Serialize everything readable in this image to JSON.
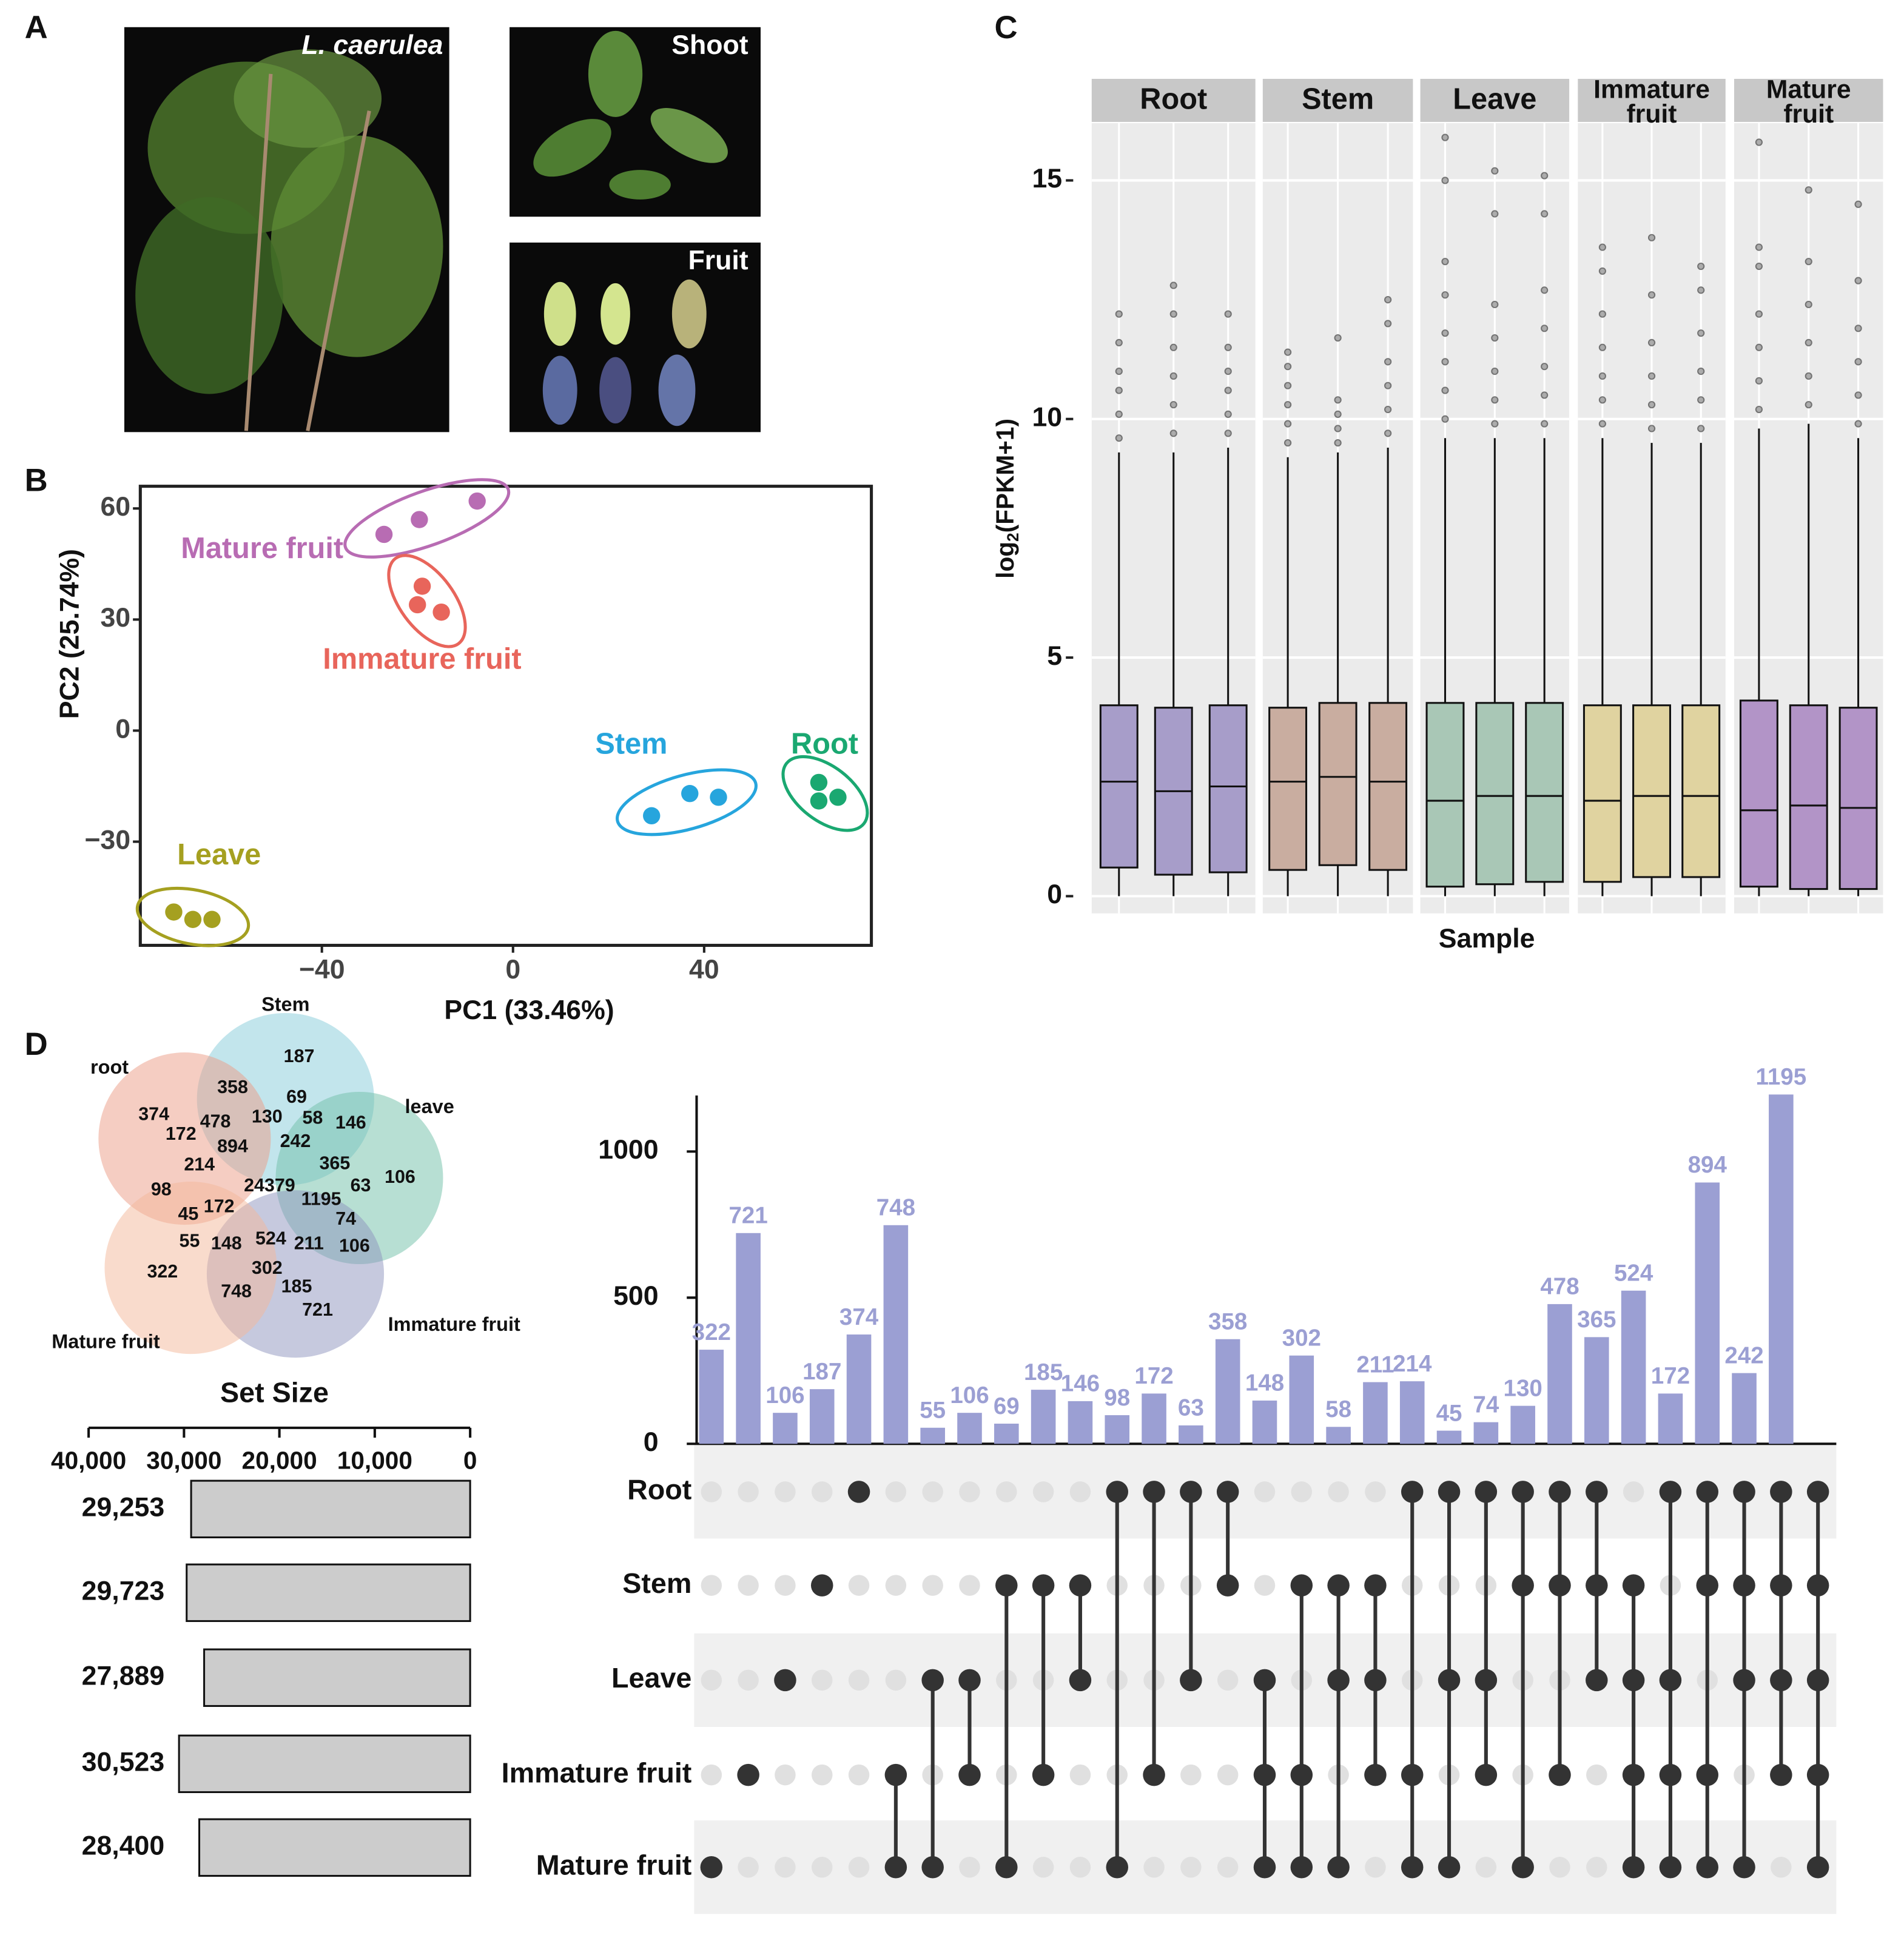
{
  "panel_labels": [
    "A",
    "B",
    "C",
    "D"
  ],
  "photos": {
    "plant": "L. caerulea",
    "shoot": "Shoot",
    "fruit": "Fruit"
  },
  "chart_data": [
    {
      "type": "scatter",
      "xlabel": "PC1 (33.46%)",
      "ylabel": "PC2 (25.74%)",
      "xlim": [
        -78,
        75
      ],
      "ylim": [
        -58,
        66
      ],
      "xticks": [
        {
          "value": -40,
          "label": "−40"
        },
        0,
        40
      ],
      "yticks": [
        {
          "value": -30,
          "label": "−30"
        },
        0,
        30,
        60
      ],
      "series": [
        {
          "name": "Mature fruit",
          "color": "#b86cb3",
          "x": [
            -27,
            -19.6,
            -7.5
          ],
          "y": [
            53,
            57,
            62
          ]
        },
        {
          "name": "Immature fruit",
          "color": "#e8655b",
          "x": [
            -19,
            -20,
            -15
          ],
          "y": [
            39,
            34,
            32
          ]
        },
        {
          "name": "Stem",
          "color": "#26a5dd",
          "x": [
            29,
            37,
            43
          ],
          "y": [
            -23,
            -17,
            -18
          ]
        },
        {
          "name": "Root",
          "color": "#1aa871",
          "x": [
            64,
            64,
            68
          ],
          "y": [
            -14,
            -19,
            -18
          ]
        },
        {
          "name": "Leave",
          "color": "#a5a020",
          "x": [
            -71,
            -67,
            -63
          ],
          "y": [
            -49,
            -51,
            -51
          ]
        }
      ]
    },
    {
      "type": "box",
      "xlabel": "Sample",
      "ylabel_parts": [
        "log",
        "2",
        "(FPKM+1)"
      ],
      "ylim": [
        -0.36,
        16.2
      ],
      "yticks": [
        0,
        5,
        10,
        15
      ],
      "grid": true,
      "facets": [
        {
          "label": [
            "Root"
          ],
          "color": "#a79dc9",
          "boxes": [
            {
              "whislo": 0,
              "q1": 0.6,
              "med": 2.4,
              "q3": 4.0,
              "whishi": 9.3,
              "outliers": [
                9.6,
                10.1,
                10.6,
                11.0,
                11.6,
                12.2
              ]
            },
            {
              "whislo": 0,
              "q1": 0.45,
              "med": 2.2,
              "q3": 3.95,
              "whishi": 9.3,
              "outliers": [
                9.7,
                10.3,
                10.9,
                11.5,
                12.2,
                12.8
              ]
            },
            {
              "whislo": 0,
              "q1": 0.5,
              "med": 2.3,
              "q3": 4.0,
              "whishi": 9.4,
              "outliers": [
                9.7,
                10.1,
                10.6,
                11.0,
                11.5,
                12.2
              ]
            }
          ]
        },
        {
          "label": [
            "Stem"
          ],
          "color": "#c9ada0",
          "boxes": [
            {
              "whislo": 0,
              "q1": 0.55,
              "med": 2.4,
              "q3": 3.95,
              "whishi": 9.2,
              "outliers": [
                9.5,
                9.9,
                10.3,
                10.7,
                11.1,
                11.4
              ]
            },
            {
              "whislo": 0,
              "q1": 0.65,
              "med": 2.5,
              "q3": 4.05,
              "whishi": 9.3,
              "outliers": [
                9.5,
                9.8,
                10.1,
                10.4,
                11.7
              ]
            },
            {
              "whislo": 0,
              "q1": 0.55,
              "med": 2.4,
              "q3": 4.05,
              "whishi": 9.4,
              "outliers": [
                9.7,
                10.2,
                10.7,
                11.2,
                12.0,
                12.5
              ]
            }
          ]
        },
        {
          "label": [
            "Leave"
          ],
          "color": "#a9c7b6",
          "boxes": [
            {
              "whislo": 0,
              "q1": 0.2,
              "med": 2.0,
              "q3": 4.05,
              "whishi": 9.6,
              "outliers": [
                10.0,
                10.6,
                11.2,
                11.8,
                12.6,
                13.3,
                15.0,
                15.9
              ]
            },
            {
              "whislo": 0,
              "q1": 0.25,
              "med": 2.1,
              "q3": 4.05,
              "whishi": 9.6,
              "outliers": [
                9.9,
                10.4,
                11.0,
                11.7,
                12.4,
                14.3,
                15.2
              ]
            },
            {
              "whislo": 0,
              "q1": 0.3,
              "med": 2.1,
              "q3": 4.05,
              "whishi": 9.6,
              "outliers": [
                9.9,
                10.5,
                11.1,
                11.9,
                12.7,
                14.3,
                15.1
              ]
            }
          ]
        },
        {
          "label": [
            "Immature",
            "fruit"
          ],
          "color": "#e0d3a0",
          "boxes": [
            {
              "whislo": 0,
              "q1": 0.3,
              "med": 2.0,
              "q3": 4.0,
              "whishi": 9.6,
              "outliers": [
                9.9,
                10.4,
                10.9,
                11.5,
                12.2,
                13.1,
                13.6
              ]
            },
            {
              "whislo": 0,
              "q1": 0.4,
              "med": 2.1,
              "q3": 4.0,
              "whishi": 9.5,
              "outliers": [
                9.8,
                10.3,
                10.9,
                11.6,
                12.6,
                13.8
              ]
            },
            {
              "whislo": 0,
              "q1": 0.4,
              "med": 2.1,
              "q3": 4.0,
              "whishi": 9.5,
              "outliers": [
                9.8,
                10.4,
                11.0,
                11.8,
                12.7,
                13.2
              ]
            }
          ]
        },
        {
          "label": [
            "Mature",
            "fruit"
          ],
          "color": "#b294c7",
          "boxes": [
            {
              "whislo": 0,
              "q1": 0.2,
              "med": 1.8,
              "q3": 4.1,
              "whishi": 9.8,
              "outliers": [
                10.2,
                10.8,
                11.5,
                12.2,
                13.2,
                13.6,
                15.8
              ]
            },
            {
              "whislo": 0,
              "q1": 0.15,
              "med": 1.9,
              "q3": 4.0,
              "whishi": 9.9,
              "outliers": [
                10.3,
                10.9,
                11.6,
                12.4,
                13.3,
                14.8
              ]
            },
            {
              "whislo": 0,
              "q1": 0.15,
              "med": 1.85,
              "q3": 3.95,
              "whishi": 9.6,
              "outliers": [
                9.9,
                10.5,
                11.2,
                11.9,
                12.9,
                14.5
              ]
            }
          ]
        }
      ]
    },
    {
      "type": "venn",
      "sets": [
        {
          "name": "Stem",
          "color": "#86cbd9"
        },
        {
          "name": "root",
          "color": "#ec9b85"
        },
        {
          "name": "leave",
          "color": "#6fbfa8"
        },
        {
          "name": "Immature fruit",
          "color": "#8e93bd"
        },
        {
          "name": "Mature fruit",
          "color": "#f4b79a"
        }
      ],
      "regions": [
        187,
        358,
        69,
        58,
        146,
        374,
        172,
        478,
        130,
        242,
        894,
        365,
        106,
        214,
        63,
        98,
        24379,
        1195,
        45,
        172,
        74,
        55,
        148,
        524,
        211,
        106,
        302,
        322,
        748,
        185,
        721
      ]
    },
    {
      "type": "hbar",
      "title": "Set Size",
      "values": [
        29253,
        29723,
        27889,
        30523,
        28400
      ],
      "value_labels": [
        "29,253",
        "29,723",
        "27,889",
        "30,523",
        "28,400"
      ],
      "color": "#cccccc",
      "xlim": [
        40000,
        0
      ],
      "xticks": [
        {
          "value": 40000,
          "label": "40,000"
        },
        {
          "value": 30000,
          "label": "30,000"
        },
        {
          "value": 20000,
          "label": "20,000"
        },
        {
          "value": 10000,
          "label": "10,000"
        },
        0
      ]
    },
    {
      "type": "upset",
      "sets": [
        "Root",
        "Stem",
        "Leave",
        "Immature fruit",
        "Mature fruit"
      ],
      "color": "#9b9fd3",
      "ylim": [
        0,
        1200
      ],
      "yticks": [
        0,
        500,
        1000
      ],
      "values": [
        322,
        721,
        106,
        187,
        374,
        748,
        55,
        106,
        69,
        185,
        146,
        98,
        172,
        63,
        358,
        148,
        302,
        58,
        211,
        214,
        45,
        74,
        130,
        478,
        365,
        524,
        172,
        894,
        242,
        1195,
        null
      ],
      "memberships": [
        [
          4
        ],
        [
          3
        ],
        [
          2
        ],
        [
          1
        ],
        [
          0
        ],
        [
          3,
          4
        ],
        [
          2,
          4
        ],
        [
          2,
          3
        ],
        [
          1,
          4
        ],
        [
          1,
          3
        ],
        [
          1,
          2
        ],
        [
          0,
          4
        ],
        [
          0,
          3
        ],
        [
          0,
          2
        ],
        [
          0,
          1
        ],
        [
          2,
          3,
          4
        ],
        [
          1,
          3,
          4
        ],
        [
          1,
          2,
          4
        ],
        [
          1,
          2,
          3
        ],
        [
          0,
          3,
          4
        ],
        [
          0,
          2,
          4
        ],
        [
          0,
          2,
          3
        ],
        [
          0,
          1,
          4
        ],
        [
          0,
          1,
          3
        ],
        [
          0,
          1,
          2
        ],
        [
          1,
          2,
          3,
          4
        ],
        [
          0,
          2,
          3,
          4
        ],
        [
          0,
          1,
          3,
          4
        ],
        [
          0,
          1,
          2,
          4
        ],
        [
          0,
          1,
          2,
          3
        ],
        [
          0,
          1,
          2,
          3,
          4
        ]
      ]
    }
  ]
}
